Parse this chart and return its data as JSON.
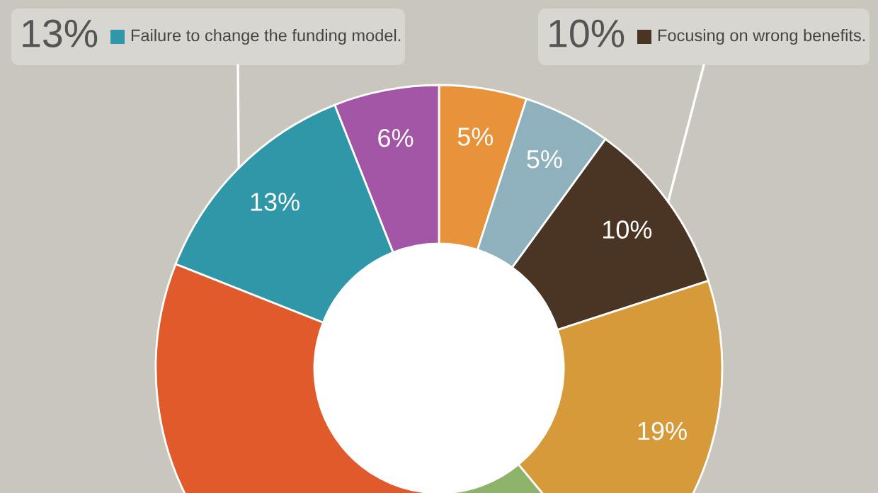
{
  "chart_data": {
    "type": "donut",
    "categories": [
      null,
      null,
      "Focusing on wrong benefits.",
      null,
      null,
      null,
      "Failure to change the funding model.",
      null
    ],
    "values": [
      5,
      5,
      10,
      19,
      11,
      31,
      13,
      6
    ],
    "value_labels": [
      "5%",
      "5%",
      "10%",
      "19%",
      null,
      null,
      "13%",
      "6%"
    ],
    "colors": [
      "#e8923a",
      "#8fb1bd",
      "#4a3423",
      "#d69a3a",
      "#8db36b",
      "#e05a2b",
      "#2f97a8",
      "#a456a6"
    ],
    "legend": "top"
  }
}
